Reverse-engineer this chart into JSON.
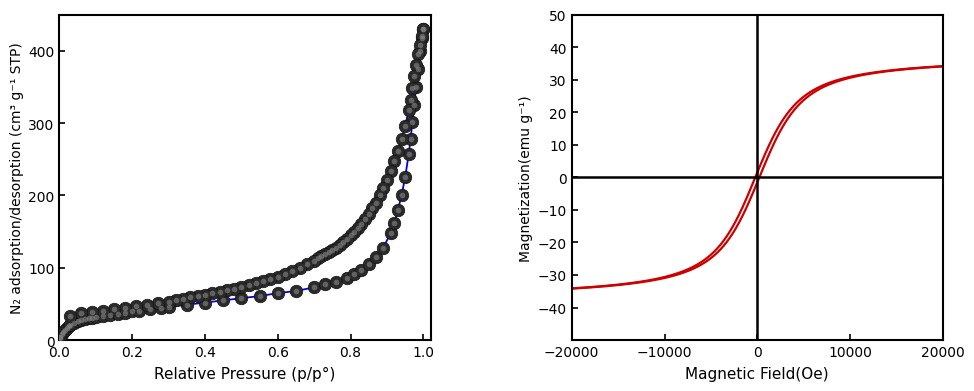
{
  "left_plot": {
    "ylabel": "N₂ adsorption/desorption (cm³ g⁻¹ STP)",
    "xlabel": "Relative Pressure (p/p°)",
    "xlim": [
      0,
      1.02
    ],
    "ylim": [
      0,
      450
    ],
    "yticks": [
      0,
      100,
      200,
      300,
      400
    ],
    "xticks": [
      0.0,
      0.2,
      0.4,
      0.6,
      0.8,
      1.0
    ],
    "line_color": "#0000ee",
    "marker_face": "#222222",
    "marker_edge": "#000000",
    "adsorption_x": [
      0.001,
      0.003,
      0.006,
      0.01,
      0.015,
      0.02,
      0.025,
      0.03,
      0.04,
      0.05,
      0.06,
      0.07,
      0.08,
      0.09,
      0.1,
      0.12,
      0.14,
      0.16,
      0.18,
      0.2,
      0.22,
      0.25,
      0.28,
      0.3,
      0.35,
      0.4,
      0.45,
      0.5,
      0.55,
      0.6,
      0.65,
      0.7,
      0.73,
      0.76,
      0.79,
      0.81,
      0.83,
      0.85,
      0.87,
      0.89,
      0.91,
      0.92,
      0.93,
      0.94,
      0.95,
      0.96,
      0.965,
      0.97,
      0.975,
      0.98,
      0.985,
      0.99,
      0.995,
      0.998
    ],
    "adsorption_y": [
      3,
      5,
      8,
      11,
      14,
      17,
      19,
      21,
      24,
      26,
      28,
      29,
      30,
      31,
      32,
      34,
      35,
      36,
      38,
      40,
      41,
      43,
      45,
      46,
      49,
      52,
      55,
      58,
      61,
      65,
      68,
      73,
      77,
      81,
      86,
      91,
      97,
      105,
      115,
      128,
      148,
      162,
      180,
      200,
      225,
      258,
      278,
      302,
      325,
      350,
      375,
      400,
      418,
      430
    ],
    "desorption_x": [
      0.998,
      0.995,
      0.99,
      0.985,
      0.98,
      0.975,
      0.97,
      0.965,
      0.96,
      0.95,
      0.94,
      0.93,
      0.92,
      0.91,
      0.9,
      0.89,
      0.88,
      0.87,
      0.86,
      0.85,
      0.84,
      0.83,
      0.82,
      0.81,
      0.8,
      0.79,
      0.78,
      0.77,
      0.76,
      0.75,
      0.74,
      0.73,
      0.72,
      0.71,
      0.7,
      0.68,
      0.66,
      0.64,
      0.62,
      0.6,
      0.58,
      0.56,
      0.54,
      0.52,
      0.5,
      0.48,
      0.46,
      0.44,
      0.42,
      0.4,
      0.38,
      0.36,
      0.34,
      0.32,
      0.3,
      0.27,
      0.24,
      0.21,
      0.18,
      0.15,
      0.12,
      0.09,
      0.06,
      0.03
    ],
    "desorption_y": [
      430,
      420,
      408,
      395,
      380,
      365,
      348,
      332,
      318,
      296,
      278,
      262,
      248,
      234,
      222,
      210,
      200,
      190,
      182,
      174,
      167,
      161,
      155,
      150,
      145,
      140,
      136,
      132,
      128,
      125,
      122,
      119,
      116,
      113,
      110,
      105,
      100,
      96,
      92,
      88,
      85,
      82,
      79,
      76,
      73,
      71,
      69,
      67,
      65,
      63,
      61,
      59,
      57,
      55,
      53,
      51,
      49,
      47,
      45,
      43,
      41,
      39,
      37,
      34
    ]
  },
  "right_plot": {
    "ylabel": "Magnetization(emu g⁻¹)",
    "xlabel": "Magnetic Field(Oe)",
    "xlim": [
      -20000,
      20000
    ],
    "ylim": [
      -50,
      50
    ],
    "yticks": [
      -40,
      -30,
      -20,
      -10,
      0,
      10,
      20,
      30,
      40,
      50
    ],
    "xticks": [
      -20000,
      -10000,
      0,
      10000,
      20000
    ],
    "line_color": "#cc0000",
    "Ms": 37.5,
    "a_param": 1800,
    "Hc": 220
  }
}
